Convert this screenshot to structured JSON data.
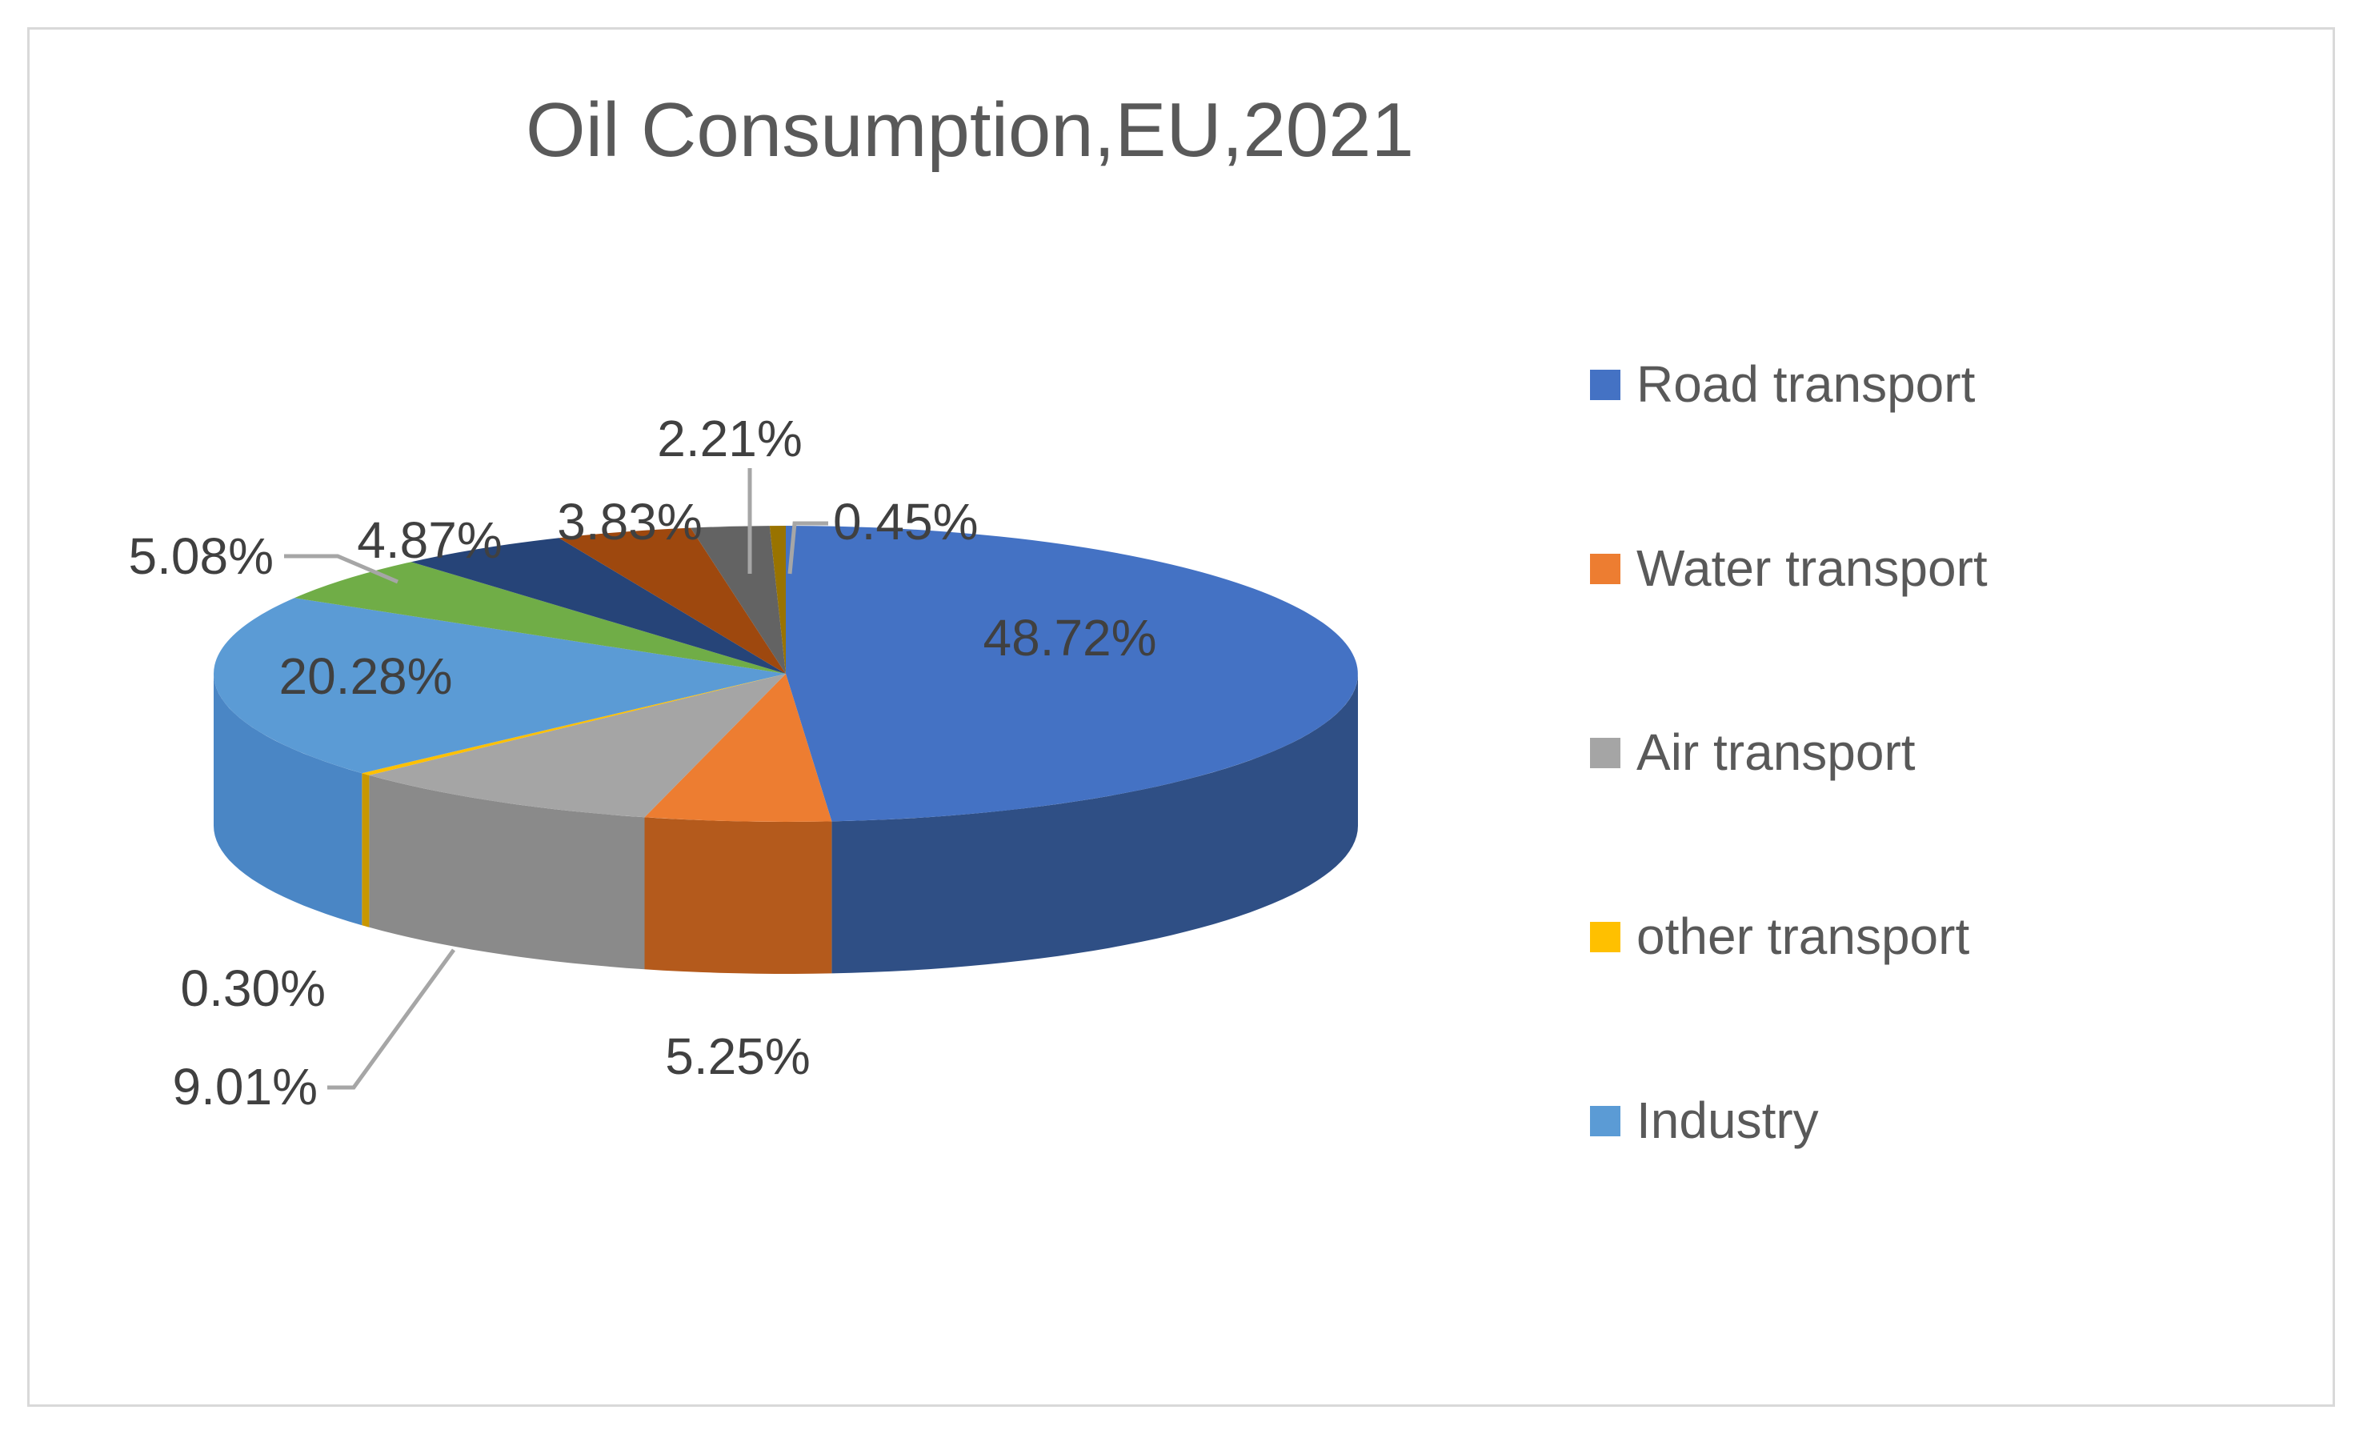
{
  "chart_data": {
    "type": "pie",
    "title": "Oil Consumption,EU,2021",
    "slices": [
      {
        "label": "Road transport",
        "value": 48.72,
        "value_label": "48.72%",
        "color": "#4472c4",
        "side_color": "#2f4f85",
        "in_legend": true
      },
      {
        "label": "Water transport",
        "value": 5.25,
        "value_label": "5.25%",
        "color": "#ed7d31",
        "side_color": "#b45a1c",
        "in_legend": true
      },
      {
        "label": "Air transport",
        "value": 9.01,
        "value_label": "9.01%",
        "color": "#a5a5a5",
        "side_color": "#8a8a8a",
        "in_legend": true
      },
      {
        "label": "other transport",
        "value": 0.3,
        "value_label": "0.30%",
        "color": "#ffc000",
        "side_color": "#c99700",
        "in_legend": true
      },
      {
        "label": "Industry",
        "value": 20.28,
        "value_label": "20.28%",
        "color": "#5b9bd5",
        "side_color": "#4a86c5",
        "in_legend": true
      },
      {
        "label": "",
        "value": 5.08,
        "value_label": "5.08%",
        "color": "#70ad47",
        "side_color": "#548235",
        "in_legend": false
      },
      {
        "label": "",
        "value": 4.87,
        "value_label": "4.87%",
        "color": "#264478",
        "side_color": "#1c3359",
        "in_legend": false
      },
      {
        "label": "",
        "value": 3.83,
        "value_label": "3.83%",
        "color": "#9e480e",
        "side_color": "#7a370b",
        "in_legend": false
      },
      {
        "label": "",
        "value": 2.21,
        "value_label": "2.21%",
        "color": "#636363",
        "side_color": "#4a4a4a",
        "in_legend": false
      },
      {
        "label": "",
        "value": 0.45,
        "value_label": "0.45%",
        "color": "#997300",
        "side_color": "#735600",
        "in_legend": false
      }
    ],
    "legend_position": "right"
  }
}
